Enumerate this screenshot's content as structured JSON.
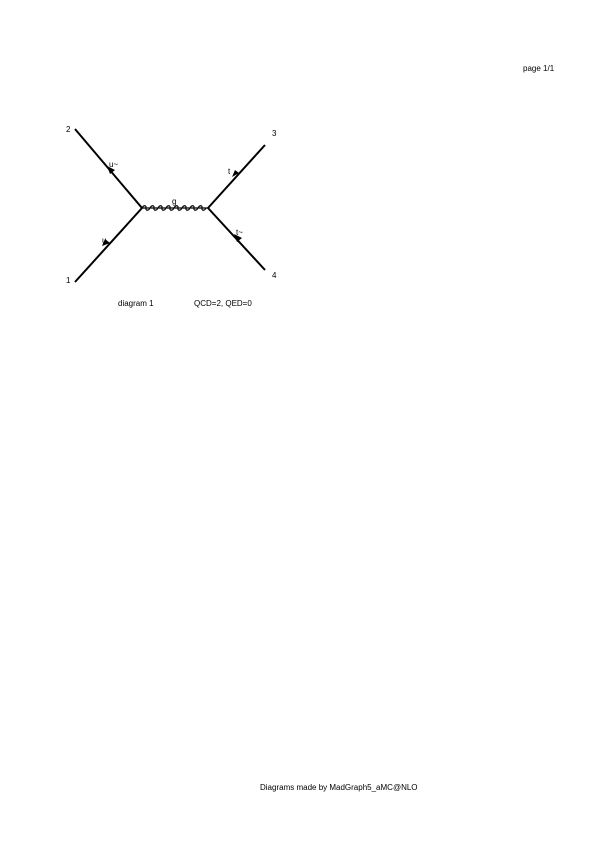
{
  "page": {
    "label": "page 1/1",
    "footer": "Diagrams made by MadGraph5_aMC@NLO"
  },
  "diagram": {
    "caption": "diagram 1",
    "couplings": "QCD=2, QED=0",
    "vertices": {
      "v1": "1",
      "v2": "2",
      "v3": "3",
      "v4": "4"
    },
    "particles": {
      "incoming_lower": "u",
      "incoming_upper": "u~",
      "propagator": "g",
      "outgoing_upper": "t",
      "outgoing_lower": "t~"
    }
  }
}
